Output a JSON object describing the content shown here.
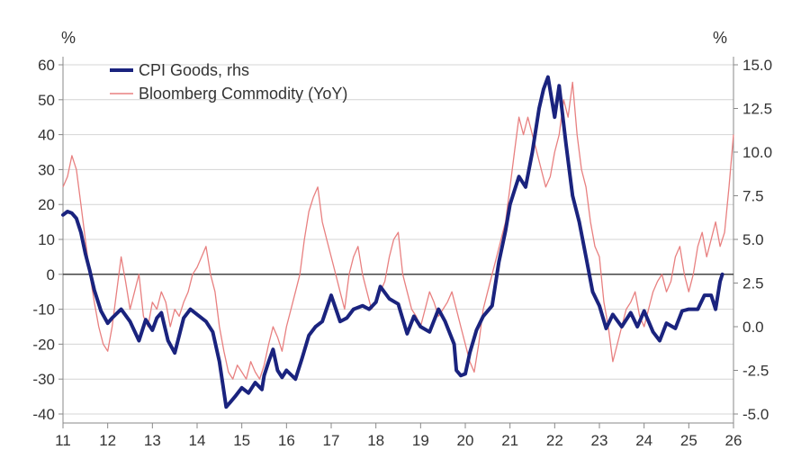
{
  "chart_data": {
    "type": "line",
    "left_axis_unit": "%",
    "right_axis_unit": "%",
    "xlim": [
      2011.0,
      2026.0
    ],
    "ylim_left": [
      -40,
      60
    ],
    "ylim_right": [
      -5.0,
      15.0
    ],
    "x_ticks": [
      "11",
      "12",
      "13",
      "14",
      "15",
      "16",
      "17",
      "18",
      "19",
      "20",
      "21",
      "22",
      "23",
      "24",
      "25",
      "26"
    ],
    "y_ticks_left": [
      "60",
      "50",
      "40",
      "30",
      "20",
      "10",
      "0",
      "-10",
      "-20",
      "-30",
      "-40"
    ],
    "y_ticks_right": [
      "15.0",
      "12.5",
      "10.0",
      "7.5",
      "5.0",
      "2.5",
      "0.0",
      "-2.5",
      "-5.0"
    ],
    "zero_line_left": 0,
    "grid": true,
    "legend": "top-left",
    "colors": {
      "cpi": "#1a237e",
      "commodity": "#e88080",
      "zero": "#444444",
      "grid": "#d4d4d4"
    },
    "series": [
      {
        "name": "CPI Goods, rhs",
        "axis": "right",
        "x": [
          2011.0,
          2011.1,
          2011.2,
          2011.3,
          2011.4,
          2011.5,
          2011.6,
          2011.7,
          2011.85,
          2012.0,
          2012.1,
          2012.3,
          2012.5,
          2012.7,
          2012.85,
          2013.0,
          2013.1,
          2013.2,
          2013.35,
          2013.5,
          2013.7,
          2013.85,
          2014.0,
          2014.2,
          2014.35,
          2014.5,
          2014.65,
          2014.75,
          2014.85,
          2015.0,
          2015.15,
          2015.3,
          2015.45,
          2015.5,
          2015.6,
          2015.7,
          2015.8,
          2015.9,
          2016.0,
          2016.2,
          2016.35,
          2016.5,
          2016.65,
          2016.8,
          2017.0,
          2017.2,
          2017.35,
          2017.5,
          2017.7,
          2017.85,
          2018.0,
          2018.1,
          2018.3,
          2018.5,
          2018.7,
          2018.85,
          2019.0,
          2019.2,
          2019.4,
          2019.55,
          2019.75,
          2019.8,
          2019.9,
          2020.0,
          2020.1,
          2020.25,
          2020.4,
          2020.6,
          2020.75,
          2020.9,
          2021.0,
          2021.1,
          2021.2,
          2021.35,
          2021.5,
          2021.65,
          2021.75,
          2021.85,
          2022.0,
          2022.1,
          2022.25,
          2022.4,
          2022.55,
          2022.7,
          2022.85,
          2023.0,
          2023.15,
          2023.3,
          2023.5,
          2023.7,
          2023.85,
          2024.0,
          2024.2,
          2024.35,
          2024.5,
          2024.7,
          2024.85,
          2025.0,
          2025.2,
          2025.35,
          2025.5,
          2025.6,
          2025.7,
          2025.75
        ],
        "y": [
          6.4,
          6.6,
          6.5,
          6.2,
          5.4,
          4.2,
          3.2,
          2.1,
          0.9,
          0.2,
          0.5,
          1.0,
          0.3,
          -0.8,
          0.4,
          -0.2,
          0.5,
          0.8,
          -0.8,
          -1.5,
          0.5,
          1.0,
          0.7,
          0.3,
          -0.3,
          -2.0,
          -4.6,
          -4.3,
          -4.0,
          -3.5,
          -3.8,
          -3.2,
          -3.6,
          -2.8,
          -2.0,
          -1.3,
          -2.5,
          -2.9,
          -2.5,
          -3.0,
          -1.8,
          -0.5,
          0.0,
          0.3,
          1.8,
          0.3,
          0.5,
          1.0,
          1.2,
          1.0,
          1.4,
          2.3,
          1.6,
          1.3,
          -0.4,
          0.6,
          0.0,
          -0.3,
          1.0,
          0.3,
          -1.0,
          -2.5,
          -2.8,
          -2.7,
          -1.5,
          -0.2,
          0.6,
          1.2,
          3.7,
          5.5,
          7.0,
          7.8,
          8.6,
          8.0,
          10.0,
          12.5,
          13.6,
          14.3,
          12.0,
          13.8,
          10.5,
          7.5,
          6.0,
          4.0,
          2.0,
          1.2,
          -0.1,
          0.7,
          0.0,
          0.8,
          0.0,
          0.9,
          -0.3,
          -0.8,
          0.2,
          -0.1,
          0.9,
          1.0,
          1.0,
          1.8,
          1.8,
          1.0,
          2.6,
          3.0
        ]
      },
      {
        "name": "Bloomberg Commodity (YoY)",
        "axis": "left",
        "x": [
          2011.0,
          2011.1,
          2011.2,
          2011.3,
          2011.4,
          2011.5,
          2011.6,
          2011.7,
          2011.8,
          2011.9,
          2012.0,
          2012.1,
          2012.2,
          2012.3,
          2012.4,
          2012.5,
          2012.6,
          2012.7,
          2012.8,
          2012.9,
          2013.0,
          2013.1,
          2013.2,
          2013.3,
          2013.4,
          2013.5,
          2013.6,
          2013.7,
          2013.8,
          2013.9,
          2014.0,
          2014.1,
          2014.2,
          2014.3,
          2014.4,
          2014.5,
          2014.6,
          2014.7,
          2014.8,
          2014.9,
          2015.0,
          2015.1,
          2015.2,
          2015.3,
          2015.4,
          2015.5,
          2015.6,
          2015.7,
          2015.8,
          2015.9,
          2016.0,
          2016.1,
          2016.2,
          2016.3,
          2016.4,
          2016.5,
          2016.6,
          2016.7,
          2016.8,
          2016.9,
          2017.0,
          2017.1,
          2017.2,
          2017.3,
          2017.4,
          2017.5,
          2017.6,
          2017.7,
          2017.8,
          2017.9,
          2018.0,
          2018.1,
          2018.2,
          2018.3,
          2018.4,
          2018.5,
          2018.6,
          2018.7,
          2018.8,
          2018.9,
          2019.0,
          2019.1,
          2019.2,
          2019.3,
          2019.4,
          2019.5,
          2019.6,
          2019.7,
          2019.8,
          2019.9,
          2020.0,
          2020.1,
          2020.2,
          2020.3,
          2020.4,
          2020.5,
          2020.6,
          2020.7,
          2020.8,
          2020.9,
          2021.0,
          2021.1,
          2021.2,
          2021.3,
          2021.4,
          2021.5,
          2021.6,
          2021.7,
          2021.8,
          2021.9,
          2022.0,
          2022.1,
          2022.2,
          2022.3,
          2022.4,
          2022.5,
          2022.6,
          2022.7,
          2022.8,
          2022.9,
          2023.0,
          2023.1,
          2023.2,
          2023.3,
          2023.4,
          2023.5,
          2023.6,
          2023.7,
          2023.8,
          2023.9,
          2024.0,
          2024.1,
          2024.2,
          2024.3,
          2024.4,
          2024.5,
          2024.6,
          2024.7,
          2024.8,
          2024.9,
          2025.0,
          2025.1,
          2025.2,
          2025.3,
          2025.4,
          2025.5,
          2025.6,
          2025.7,
          2025.8,
          2025.9,
          2026.0
        ],
        "y": [
          25,
          28,
          34,
          30,
          20,
          10,
          0,
          -8,
          -15,
          -20,
          -22,
          -15,
          -5,
          5,
          -2,
          -10,
          -5,
          0,
          -12,
          -15,
          -8,
          -10,
          -5,
          -8,
          -15,
          -10,
          -12,
          -8,
          -5,
          0,
          2,
          5,
          8,
          0,
          -5,
          -15,
          -22,
          -28,
          -30,
          -26,
          -28,
          -30,
          -25,
          -28,
          -30,
          -26,
          -20,
          -15,
          -18,
          -22,
          -15,
          -10,
          -5,
          0,
          10,
          18,
          22,
          25,
          15,
          10,
          5,
          0,
          -5,
          -10,
          0,
          5,
          8,
          0,
          -5,
          -10,
          -8,
          -5,
          -2,
          5,
          10,
          12,
          0,
          -5,
          -10,
          -12,
          -15,
          -10,
          -5,
          -8,
          -12,
          -10,
          -8,
          -5,
          -10,
          -15,
          -20,
          -25,
          -28,
          -20,
          -10,
          -5,
          0,
          5,
          10,
          15,
          25,
          35,
          45,
          40,
          45,
          40,
          35,
          30,
          25,
          28,
          35,
          40,
          50,
          45,
          55,
          40,
          30,
          25,
          15,
          8,
          5,
          -8,
          -15,
          -25,
          -20,
          -15,
          -10,
          -8,
          -5,
          -12,
          -15,
          -10,
          -5,
          -2,
          0,
          -5,
          -2,
          5,
          8,
          0,
          -5,
          0,
          8,
          12,
          5,
          10,
          15,
          8,
          12,
          25,
          40
        ]
      }
    ]
  }
}
